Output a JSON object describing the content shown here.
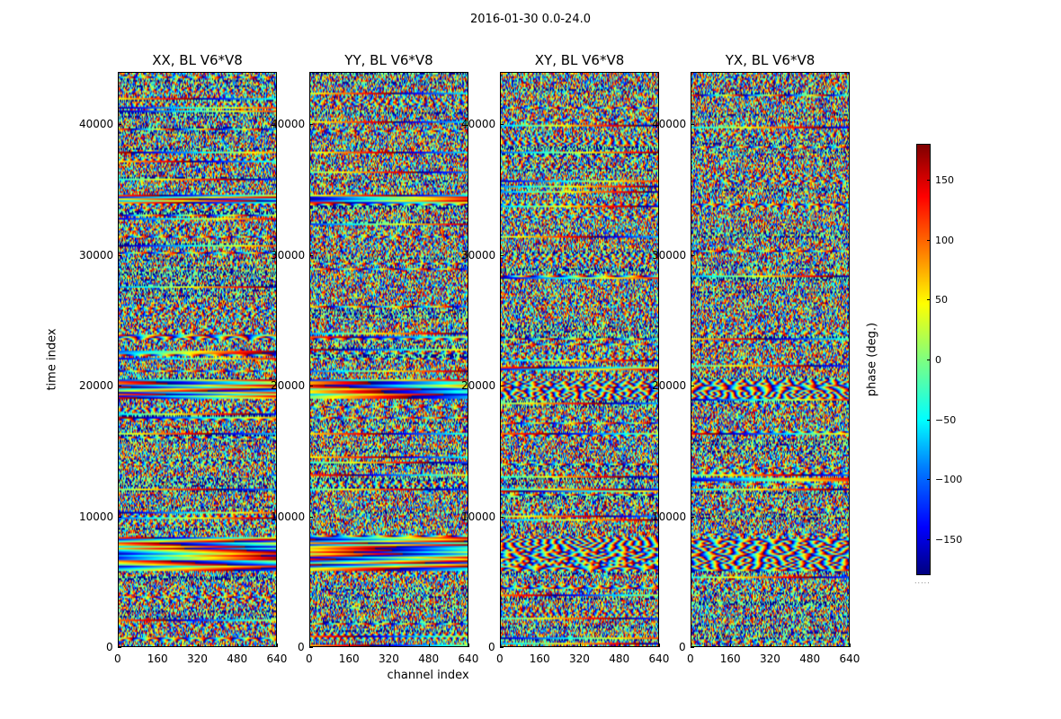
{
  "chart_data": {
    "type": "heatmap",
    "suptitle": "2016-01-30 0.0-24.0",
    "panels": [
      {
        "title": "XX, BL V6*V8"
      },
      {
        "title": "YY, BL V6*V8"
      },
      {
        "title": "XY, BL V6*V8"
      },
      {
        "title": "YX, BL V6*V8"
      }
    ],
    "xlabel": "channel index",
    "ylabel": "time index",
    "xticks": [
      "0",
      "160",
      "320",
      "480",
      "640"
    ],
    "yticks": [
      "0",
      "10000",
      "20000",
      "30000",
      "40000"
    ],
    "xlim": [
      0,
      640
    ],
    "ylim": [
      0,
      44000
    ],
    "colorbar": {
      "label": "phase (deg.)",
      "ticks": [
        "150",
        "100",
        "50",
        "0",
        "−50",
        "−100",
        "−150"
      ],
      "range": [
        -180,
        180
      ],
      "colormap": "jet",
      "footnote": "....."
    }
  }
}
